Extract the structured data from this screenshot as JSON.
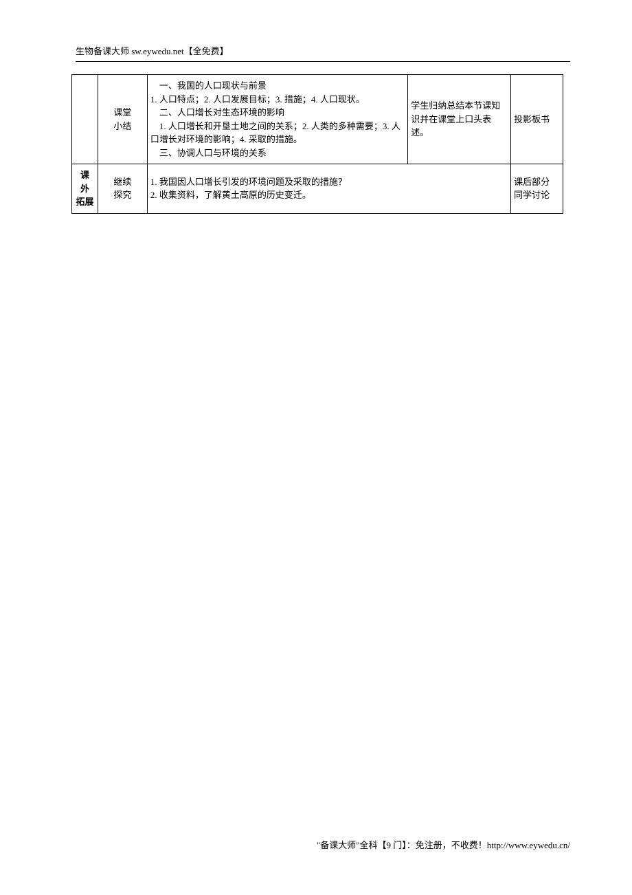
{
  "header": {
    "text": "生物备课大师 sw.eywedu.net【全免费】"
  },
  "footer": {
    "text": "\"备课大师\"全科【9 门】：免注册，不收费！http://www.eywedu.cn/"
  },
  "table": {
    "row1": {
      "col1": "",
      "col2_line1": "课堂",
      "col2_line2": "小结",
      "col3_line1": "　一、我国的人口现状与前景",
      "col3_line2": "1. 人口特点；2. 人口发展目标；3. 措施；4. 人口现状。",
      "col3_line3": "　二、人口增长对生态环境的影响",
      "col3_line4": "　1. 人口增长和开垦土地之间的关系；2. 人类的多种需要；3. 人口增长对环境的影响；4. 采取的措施。",
      "col3_line5": "　三、协调人口与环境的关系",
      "col4": "学生归纳总结本节课知识并在课堂上口头表述。",
      "col5": "投影板书"
    },
    "row2": {
      "col1_line1": "课 外",
      "col1_line2": "拓展",
      "col2_line1": "继续",
      "col2_line2": "探究",
      "col3_line1": "1. 我国因人口增长引发的环境问题及采取的措施？",
      "col3_line2": "2. 收集资料，了解黄土高原的历史变迁。",
      "col5_line1": "课后部分",
      "col5_line2": "同学讨论"
    }
  }
}
